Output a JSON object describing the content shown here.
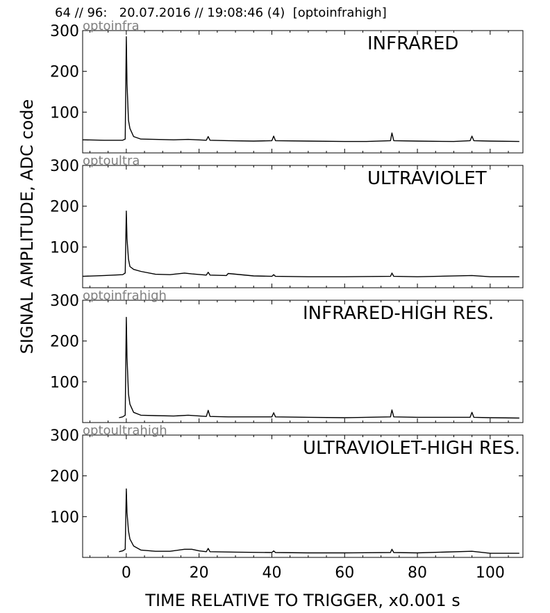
{
  "header": "64 // 96:   20.07.2016 // 19:08:46 (4)  [optoinfrahigh]",
  "ylabel": "SIGNAL AMPLITUDE,  ADC code",
  "xlabel": "TIME RELATIVE TO TRIGGER,   x0.001 s",
  "chart_data": [
    {
      "type": "line",
      "channel": "optoinfra",
      "title": "INFRARED",
      "xlim": [
        -12,
        109
      ],
      "ylim": [
        0,
        300
      ],
      "yticks": [
        100,
        200,
        300
      ],
      "xticks": [
        0,
        20,
        40,
        60,
        80,
        100
      ],
      "series": [
        {
          "x": [
            -12,
            -6,
            -1,
            -0.3,
            0,
            0.2,
            0.6,
            1,
            2,
            4,
            8,
            13,
            17,
            22,
            22.5,
            23,
            28,
            35,
            40,
            40.5,
            41,
            50,
            60,
            66,
            72.6,
            73,
            73.5,
            80,
            90,
            94.5,
            95,
            95.5,
            100,
            108
          ],
          "y": [
            32,
            31,
            31,
            34,
            285,
            170,
            80,
            60,
            40,
            34,
            33,
            32,
            33,
            31,
            40,
            31,
            30,
            29,
            30,
            41,
            30,
            29,
            28,
            28,
            30,
            49,
            30,
            29,
            28,
            30,
            41,
            30,
            29,
            28
          ]
        }
      ]
    },
    {
      "type": "line",
      "channel": "optoultra",
      "title": "ULTRAVIOLET",
      "xlim": [
        -12,
        109
      ],
      "ylim": [
        0,
        300
      ],
      "yticks": [
        100,
        200,
        300
      ],
      "xticks": [
        0,
        20,
        40,
        60,
        80,
        100
      ],
      "series": [
        {
          "x": [
            -12,
            -6,
            -1,
            -0.3,
            0,
            0.2,
            0.6,
            1,
            2,
            4,
            8,
            12,
            16,
            18,
            22,
            22.5,
            23,
            27.5,
            28,
            35,
            40,
            40.5,
            41,
            50,
            60,
            72.6,
            73,
            73.5,
            80,
            95,
            100,
            108
          ],
          "y": [
            28,
            30,
            32,
            36,
            188,
            120,
            70,
            52,
            45,
            40,
            33,
            32,
            36,
            34,
            31,
            38,
            31,
            30,
            35,
            29,
            28,
            32,
            28,
            27,
            27,
            28,
            36,
            28,
            27,
            30,
            27,
            27
          ]
        }
      ]
    },
    {
      "type": "line",
      "channel": "optoinfrahigh",
      "title": "INFRARED-HIGH RES.",
      "xlim": [
        -12,
        109
      ],
      "ylim": [
        0,
        300
      ],
      "yticks": [
        100,
        200,
        300
      ],
      "xticks": [
        0,
        20,
        40,
        60,
        80,
        100
      ],
      "series": [
        {
          "x": [
            -2,
            -1,
            -0.3,
            0,
            0.2,
            0.6,
            1,
            2,
            4,
            8,
            13,
            17,
            22,
            22.5,
            23,
            28,
            35,
            40,
            40.5,
            41,
            50,
            60,
            72.6,
            73,
            73.5,
            80,
            94.5,
            95,
            95.5,
            100,
            108
          ],
          "y": [
            12,
            14,
            18,
            258,
            160,
            70,
            45,
            25,
            18,
            17,
            16,
            18,
            15,
            30,
            15,
            14,
            14,
            14,
            24,
            14,
            13,
            12,
            14,
            31,
            14,
            13,
            13,
            25,
            13,
            12,
            11
          ]
        }
      ]
    },
    {
      "type": "line",
      "channel": "optoultrahigh",
      "title": "ULTRAVIOLET-HIGH RES.",
      "xlim": [
        -12,
        109
      ],
      "ylim": [
        0,
        300
      ],
      "yticks": [
        100,
        200,
        300
      ],
      "xticks": [
        0,
        20,
        40,
        60,
        80,
        100
      ],
      "series": [
        {
          "x": [
            -2,
            -1,
            -0.3,
            0,
            0.2,
            0.6,
            1,
            2,
            4,
            8,
            12,
            16,
            18,
            20,
            22,
            22.5,
            23,
            30,
            40,
            40.5,
            41,
            50,
            60,
            72.6,
            73,
            73.5,
            80,
            95,
            100,
            108
          ],
          "y": [
            14,
            16,
            20,
            168,
            110,
            65,
            45,
            28,
            18,
            15,
            15,
            20,
            20,
            16,
            14,
            22,
            14,
            13,
            12,
            16,
            12,
            11,
            11,
            12,
            20,
            12,
            11,
            15,
            10,
            10
          ]
        }
      ]
    }
  ]
}
